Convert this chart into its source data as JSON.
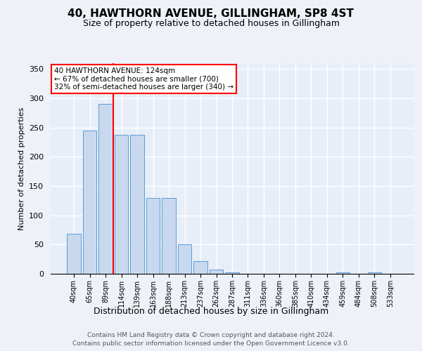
{
  "title": "40, HAWTHORN AVENUE, GILLINGHAM, SP8 4ST",
  "subtitle": "Size of property relative to detached houses in Gillingham",
  "xlabel": "Distribution of detached houses by size in Gillingham",
  "ylabel": "Number of detached properties",
  "categories": [
    "40sqm",
    "65sqm",
    "89sqm",
    "114sqm",
    "139sqm",
    "163sqm",
    "188sqm",
    "213sqm",
    "237sqm",
    "262sqm",
    "287sqm",
    "311sqm",
    "336sqm",
    "360sqm",
    "385sqm",
    "410sqm",
    "434sqm",
    "459sqm",
    "484sqm",
    "508sqm",
    "533sqm"
  ],
  "values": [
    68,
    245,
    290,
    238,
    238,
    130,
    130,
    50,
    22,
    7,
    2,
    0,
    0,
    0,
    0,
    0,
    0,
    2,
    0,
    2,
    0
  ],
  "bar_color": "#c8d9ef",
  "bar_edge_color": "#5b9bd5",
  "annotation_line1": "40 HAWTHORN AVENUE: 124sqm",
  "annotation_line2": "← 67% of detached houses are smaller (700)",
  "annotation_line3": "32% of semi-detached houses are larger (340) →",
  "red_line_x": 2.5,
  "ylim": [
    0,
    360
  ],
  "yticks": [
    0,
    50,
    100,
    150,
    200,
    250,
    300,
    350
  ],
  "plot_bg_color": "#e8eef8",
  "fig_bg_color": "#eef2f8",
  "grid_color": "#ffffff",
  "footer_line1": "Contains HM Land Registry data © Crown copyright and database right 2024.",
  "footer_line2": "Contains public sector information licensed under the Open Government Licence v3.0."
}
